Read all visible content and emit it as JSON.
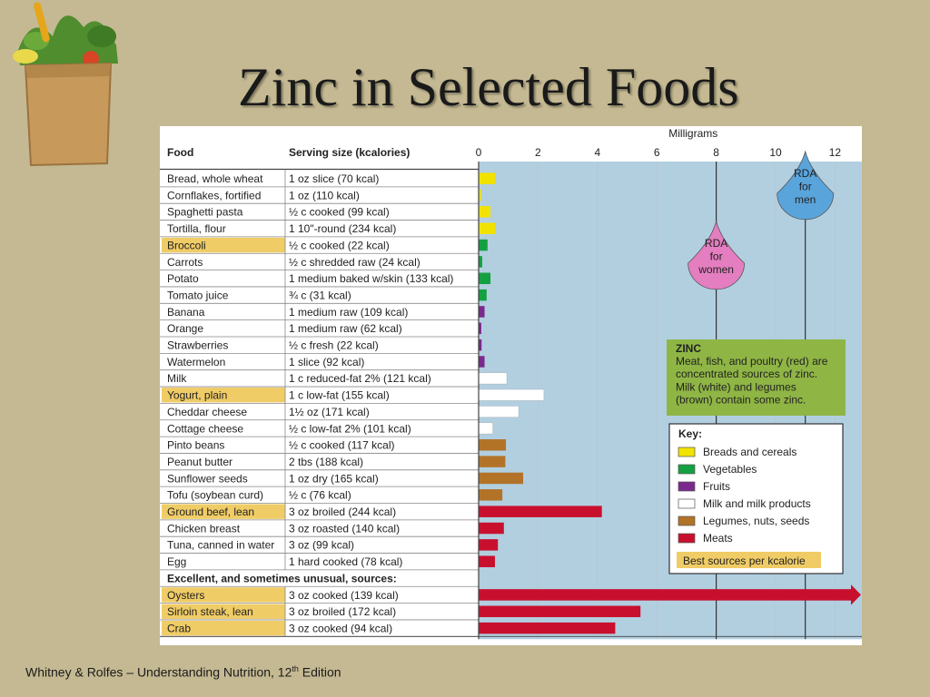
{
  "slide": {
    "title": "Zinc in Selected Foods",
    "footer_text": "Whitney  & Rolfes – Understanding Nutrition, 12",
    "footer_sup": "th",
    "footer_tail": "  Edition"
  },
  "chart_data": {
    "type": "bar",
    "orientation": "horizontal",
    "title": "",
    "xlabel": "Milligrams",
    "xlim": [
      0,
      12.9
    ],
    "xticks": [
      0,
      2,
      4,
      6,
      8,
      10,
      12
    ],
    "column_headers": {
      "food": "Food",
      "serving": "Serving size (kcalories)"
    },
    "rows": [
      {
        "food": "Bread, whole wheat",
        "serving": "1 oz slice (70 kcal)",
        "value": 0.55,
        "group": "breads",
        "best": false
      },
      {
        "food": "Cornflakes, fortified",
        "serving": "1 oz (110 kcal)",
        "value": 0.08,
        "group": "breads",
        "best": false
      },
      {
        "food": "Spaghetti pasta",
        "serving": "½ c cooked (99 kcal)",
        "value": 0.4,
        "group": "breads",
        "best": false
      },
      {
        "food": "Tortilla, flour",
        "serving": "1 10\"-round (234 kcal)",
        "value": 0.55,
        "group": "breads",
        "best": false
      },
      {
        "food": "Broccoli",
        "serving": "½ c cooked (22 kcal)",
        "value": 0.3,
        "group": "vegetables",
        "best": true
      },
      {
        "food": "Carrots",
        "serving": "½ c shredded raw (24 kcal)",
        "value": 0.12,
        "group": "vegetables",
        "best": false
      },
      {
        "food": "Potato",
        "serving": "1 medium baked w/skin (133 kcal)",
        "value": 0.4,
        "group": "vegetables",
        "best": false
      },
      {
        "food": "Tomato juice",
        "serving": "¾ c (31 kcal)",
        "value": 0.27,
        "group": "vegetables",
        "best": false
      },
      {
        "food": "Banana",
        "serving": "1 medium raw (109 kcal)",
        "value": 0.2,
        "group": "fruits",
        "best": false
      },
      {
        "food": "Orange",
        "serving": "1 medium raw (62 kcal)",
        "value": 0.09,
        "group": "fruits",
        "best": false
      },
      {
        "food": "Strawberries",
        "serving": "½ c fresh (22 kcal)",
        "value": 0.1,
        "group": "fruits",
        "best": false
      },
      {
        "food": "Watermelon",
        "serving": "1 slice (92 kcal)",
        "value": 0.2,
        "group": "fruits",
        "best": false
      },
      {
        "food": "Milk",
        "serving": "1 c reduced-fat 2% (121 kcal)",
        "value": 0.95,
        "group": "milk",
        "best": false
      },
      {
        "food": "Yogurt, plain",
        "serving": "1 c low-fat (155 kcal)",
        "value": 2.2,
        "group": "milk",
        "best": true
      },
      {
        "food": "Cheddar cheese",
        "serving": "1½ oz (171 kcal)",
        "value": 1.35,
        "group": "milk",
        "best": false
      },
      {
        "food": "Cottage cheese",
        "serving": "½ c low-fat 2% (101 kcal)",
        "value": 0.48,
        "group": "milk",
        "best": false
      },
      {
        "food": "Pinto beans",
        "serving": "½ c cooked (117 kcal)",
        "value": 0.92,
        "group": "legumes",
        "best": false
      },
      {
        "food": "Peanut butter",
        "serving": "2 tbs (188 kcal)",
        "value": 0.9,
        "group": "legumes",
        "best": false
      },
      {
        "food": "Sunflower seeds",
        "serving": "1 oz dry (165 kcal)",
        "value": 1.5,
        "group": "legumes",
        "best": false
      },
      {
        "food": "Tofu (soybean curd)",
        "serving": "½ c (76 kcal)",
        "value": 0.8,
        "group": "legumes",
        "best": false
      },
      {
        "food": "Ground beef, lean",
        "serving": "3 oz broiled (244 kcal)",
        "value": 4.15,
        "group": "meats",
        "best": true
      },
      {
        "food": "Chicken breast",
        "serving": "3 oz roasted (140 kcal)",
        "value": 0.85,
        "group": "meats",
        "best": false
      },
      {
        "food": "Tuna, canned in water",
        "serving": "3 oz (99 kcal)",
        "value": 0.65,
        "group": "meats",
        "best": false
      },
      {
        "food": "Egg",
        "serving": "1 hard cooked (78 kcal)",
        "value": 0.55,
        "group": "meats",
        "best": false
      },
      {
        "section": "Excellent, and sometimes unusual, sources:"
      },
      {
        "food": "Oysters",
        "serving": "3 oz cooked (139 kcal)",
        "value": 12.9,
        "group": "meats",
        "best": true,
        "overflow": true
      },
      {
        "food": "Sirloin steak, lean",
        "serving": "3 oz broiled (172 kcal)",
        "value": 5.45,
        "group": "meats",
        "best": true
      },
      {
        "food": "Crab",
        "serving": "3 oz cooked (94 kcal)",
        "value": 4.6,
        "group": "meats",
        "best": true
      }
    ],
    "reference_lines": [
      {
        "label": [
          "RDA",
          "for",
          "women"
        ],
        "value": 8,
        "color": "#e47ec0"
      },
      {
        "label": [
          "RDA",
          "for",
          "men"
        ],
        "value": 11,
        "color": "#5aa4dc"
      }
    ],
    "info_box": {
      "heading": "ZINC",
      "lines": [
        "Meat, fish, and poultry (red) are",
        "concentrated sources of zinc.",
        "Milk (white) and legumes",
        "(brown) contain some zinc."
      ]
    },
    "legend": {
      "title": "Key:",
      "items": [
        {
          "label": "Breads and cereals",
          "color": "#f2e200",
          "group": "breads"
        },
        {
          "label": "Vegetables",
          "color": "#14a040",
          "group": "vegetables"
        },
        {
          "label": "Fruits",
          "color": "#7a2a8c",
          "group": "fruits"
        },
        {
          "label": "Milk and milk products",
          "color": "#ffffff",
          "group": "milk"
        },
        {
          "label": "Legumes, nuts, seeds",
          "color": "#b27328",
          "group": "legumes"
        },
        {
          "label": "Meats",
          "color": "#c8102e",
          "group": "meats"
        }
      ],
      "best_label": "Best sources per kcalorie",
      "best_color": "#f0cc66"
    },
    "plot_bg": "#b2cfe0"
  }
}
